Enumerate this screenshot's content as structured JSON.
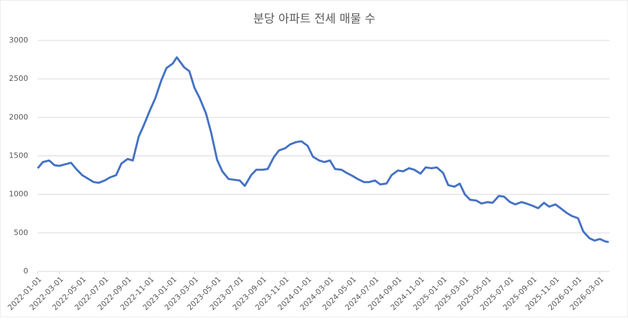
{
  "chart_data": {
    "type": "line",
    "title": "분당 아파트 전세 매물 수",
    "x": [
      "2022-01-01",
      "2022-01-15",
      "2022-02-01",
      "2022-02-15",
      "2022-03-01",
      "2022-03-15",
      "2022-04-01",
      "2022-04-15",
      "2022-05-01",
      "2022-05-15",
      "2022-06-01",
      "2022-06-15",
      "2022-07-01",
      "2022-07-15",
      "2022-08-01",
      "2022-08-15",
      "2022-09-01",
      "2022-09-15",
      "2022-10-01",
      "2022-10-15",
      "2022-11-01",
      "2022-11-15",
      "2022-12-01",
      "2022-12-15",
      "2023-01-01",
      "2023-01-12",
      "2023-02-01",
      "2023-02-15",
      "2023-03-01",
      "2023-03-15",
      "2023-04-01",
      "2023-04-15",
      "2023-05-01",
      "2023-05-15",
      "2023-06-01",
      "2023-06-15",
      "2023-07-01",
      "2023-07-15",
      "2023-08-01",
      "2023-08-15",
      "2023-09-01",
      "2023-09-15",
      "2023-10-01",
      "2023-10-15",
      "2023-11-01",
      "2023-11-15",
      "2023-12-01",
      "2023-12-15",
      "2024-01-01",
      "2024-01-15",
      "2024-02-01",
      "2024-02-15",
      "2024-03-01",
      "2024-03-15",
      "2024-04-01",
      "2024-04-15",
      "2024-05-01",
      "2024-05-15",
      "2024-06-01",
      "2024-06-15",
      "2024-07-01",
      "2024-07-15",
      "2024-08-01",
      "2024-08-15",
      "2024-09-01",
      "2024-09-15",
      "2024-10-01",
      "2024-10-15",
      "2024-11-01",
      "2024-11-15",
      "2024-12-01",
      "2024-12-15",
      "2025-01-01",
      "2025-01-15",
      "2025-02-01",
      "2025-02-15",
      "2025-03-01",
      "2025-03-15",
      "2025-04-01",
      "2025-04-15",
      "2025-05-01",
      "2025-05-15",
      "2025-06-01",
      "2025-06-15",
      "2025-07-01",
      "2025-07-15",
      "2025-08-01",
      "2025-08-15",
      "2025-09-01",
      "2025-09-15",
      "2025-10-01",
      "2025-10-15",
      "2025-11-01",
      "2025-11-15",
      "2025-12-01",
      "2025-12-15",
      "2026-01-01",
      "2026-01-15",
      "2026-02-01",
      "2026-02-15",
      "2026-03-01",
      "2026-03-15",
      "2026-03-25"
    ],
    "series": [
      {
        "color": "#4472c4",
        "values": [
          1340,
          1420,
          1440,
          1380,
          1370,
          1390,
          1410,
          1330,
          1250,
          1210,
          1160,
          1150,
          1180,
          1220,
          1250,
          1400,
          1460,
          1440,
          1750,
          1900,
          2100,
          2250,
          2480,
          2640,
          2700,
          2780,
          2650,
          2600,
          2380,
          2250,
          2050,
          1800,
          1450,
          1300,
          1200,
          1190,
          1180,
          1110,
          1250,
          1320,
          1320,
          1330,
          1480,
          1570,
          1600,
          1650,
          1680,
          1690,
          1630,
          1490,
          1440,
          1420,
          1440,
          1330,
          1320,
          1280,
          1240,
          1200,
          1160,
          1160,
          1180,
          1130,
          1140,
          1250,
          1310,
          1300,
          1340,
          1320,
          1270,
          1350,
          1340,
          1350,
          1280,
          1120,
          1100,
          1140,
          1000,
          930,
          920,
          880,
          900,
          890,
          980,
          970,
          900,
          870,
          900,
          880,
          850,
          820,
          890,
          840,
          870,
          820,
          760,
          720,
          690,
          520,
          430,
          400,
          420,
          390,
          380
        ]
      }
    ],
    "xlim": [
      "2022-01-01",
      "2026-03-27"
    ],
    "xticks": [
      "2022-01-01",
      "2022-03-01",
      "2022-05-01",
      "2022-07-01",
      "2022-09-01",
      "2022-11-01",
      "2023-01-01",
      "2023-03-01",
      "2023-05-01",
      "2023-07-01",
      "2023-09-01",
      "2023-11-01",
      "2024-01-01",
      "2024-03-01",
      "2024-05-01",
      "2024-07-01",
      "2024-09-01",
      "2024-11-01",
      "2025-01-01",
      "2025-03-01",
      "2025-05-01",
      "2025-07-01",
      "2025-09-01",
      "2025-11-01",
      "2026-01-01",
      "2026-03-01"
    ],
    "ylim": [
      0,
      3000
    ],
    "yticks": [
      0,
      500,
      1000,
      1500,
      2000,
      2500,
      3000
    ],
    "grid": true
  }
}
